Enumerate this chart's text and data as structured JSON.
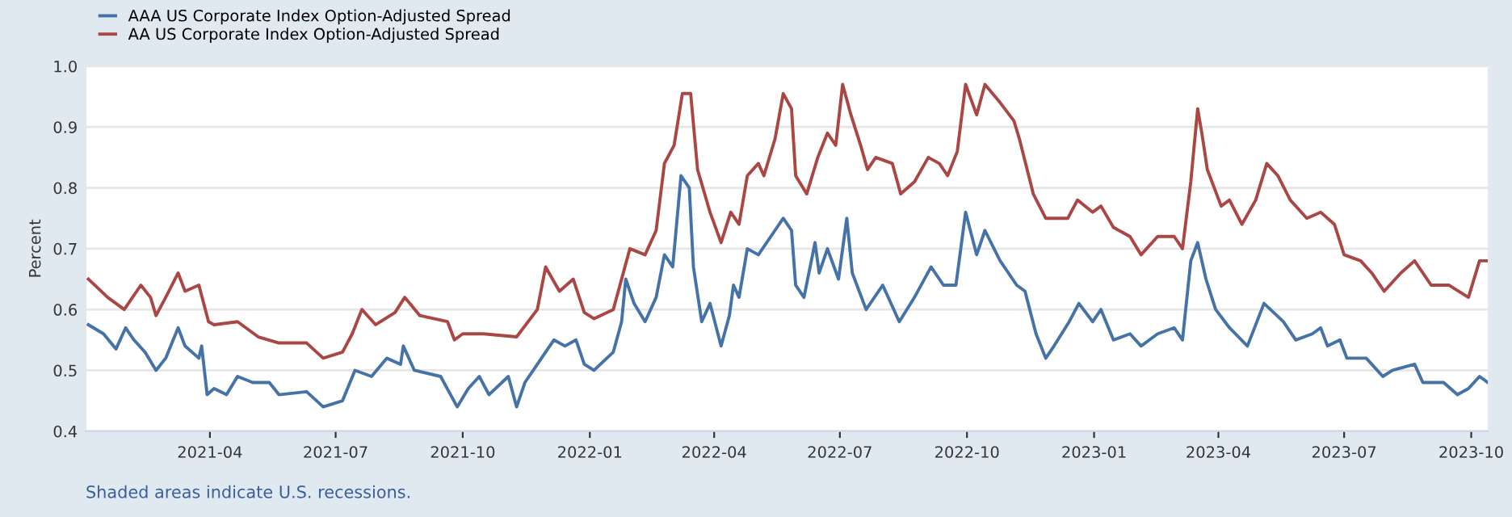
{
  "chart_data": {
    "type": "line",
    "ylabel": "Percent",
    "ylim": [
      0.4,
      1.0
    ],
    "yticks": [
      0.4,
      0.5,
      0.6,
      0.7,
      0.8,
      0.9,
      {
        "value": 1,
        "label": "1.0"
      }
    ],
    "xlim": [
      "2021-01-01",
      "2023-10-13"
    ],
    "xticks": [
      "2021-04",
      "2021-07",
      "2021-10",
      "2022-01",
      "2022-04",
      "2022-07",
      "2022-10",
      "2023-01",
      "2023-04",
      "2023-07",
      "2023-10"
    ],
    "grid": "y",
    "legend": "top left",
    "line_style": "solid",
    "marker": "none",
    "annotations": [
      "Shaded areas indicate U.S. recessions."
    ],
    "series": [
      {
        "name": "AAA US Corporate Index Option-Adjusted Spread",
        "color": "#4572a7",
        "x": [
          "2021-01-03",
          "2021-01-14",
          "2021-01-23",
          "2021-01-30",
          "2021-02-05",
          "2021-02-13",
          "2021-02-21",
          "2021-02-28",
          "2021-03-09",
          "2021-03-14",
          "2021-03-24",
          "2021-03-26",
          "2021-03-30",
          "2021-04-04",
          "2021-04-13",
          "2021-04-21",
          "2021-05-02",
          "2021-05-14",
          "2021-05-21",
          "2021-06-10",
          "2021-06-22",
          "2021-07-06",
          "2021-07-15",
          "2021-07-27",
          "2021-08-07",
          "2021-08-17",
          "2021-08-19",
          "2021-08-27",
          "2021-09-15",
          "2021-09-27",
          "2021-10-05",
          "2021-10-13",
          "2021-10-20",
          "2021-11-03",
          "2021-11-09",
          "2021-11-15",
          "2021-11-30",
          "2021-12-06",
          "2021-12-14",
          "2021-12-22",
          "2021-12-28",
          "2022-01-04",
          "2022-01-18",
          "2022-01-24",
          "2022-01-27",
          "2022-02-02",
          "2022-02-10",
          "2022-02-18",
          "2022-02-24",
          "2022-03-02",
          "2022-03-08",
          "2022-03-14",
          "2022-03-17",
          "2022-03-23",
          "2022-03-29",
          "2022-04-06",
          "2022-04-12",
          "2022-04-15",
          "2022-04-19",
          "2022-04-25",
          "2022-05-03",
          "2022-05-15",
          "2022-05-21",
          "2022-05-27",
          "2022-05-30",
          "2022-06-05",
          "2022-06-13",
          "2022-06-16",
          "2022-06-22",
          "2022-06-30",
          "2022-07-06",
          "2022-07-10",
          "2022-07-20",
          "2022-08-01",
          "2022-08-13",
          "2022-08-24",
          "2022-09-05",
          "2022-09-14",
          "2022-09-23",
          "2022-09-30",
          "2022-10-08",
          "2022-10-14",
          "2022-10-25",
          "2022-11-06",
          "2022-11-12",
          "2022-11-20",
          "2022-11-27",
          "2022-12-03",
          "2022-12-14",
          "2022-12-21",
          "2022-12-31",
          "2023-01-06",
          "2023-01-15",
          "2023-01-27",
          "2023-02-04",
          "2023-02-16",
          "2023-02-28",
          "2023-03-06",
          "2023-03-12",
          "2023-03-17",
          "2023-03-23",
          "2023-03-30",
          "2023-04-09",
          "2023-04-22",
          "2023-05-04",
          "2023-05-18",
          "2023-05-27",
          "2023-06-08",
          "2023-06-14",
          "2023-06-19",
          "2023-06-28",
          "2023-07-03",
          "2023-07-17",
          "2023-07-29",
          "2023-08-05",
          "2023-08-21",
          "2023-08-27",
          "2023-09-11",
          "2023-09-21",
          "2023-09-29",
          "2023-10-07",
          "2023-10-13"
        ],
        "values": [
          0.575,
          0.56,
          0.535,
          0.57,
          0.55,
          0.53,
          0.5,
          0.52,
          0.57,
          0.54,
          0.52,
          0.54,
          0.46,
          0.47,
          0.46,
          0.49,
          0.48,
          0.48,
          0.46,
          0.465,
          0.44,
          0.45,
          0.5,
          0.49,
          0.52,
          0.51,
          0.54,
          0.5,
          0.49,
          0.44,
          0.47,
          0.49,
          0.46,
          0.49,
          0.44,
          0.48,
          0.53,
          0.55,
          0.54,
          0.55,
          0.51,
          0.5,
          0.53,
          0.58,
          0.65,
          0.61,
          0.58,
          0.62,
          0.69,
          0.67,
          0.82,
          0.8,
          0.67,
          0.58,
          0.61,
          0.54,
          0.59,
          0.64,
          0.62,
          0.7,
          0.69,
          0.73,
          0.75,
          0.73,
          0.64,
          0.62,
          0.71,
          0.66,
          0.7,
          0.65,
          0.75,
          0.66,
          0.6,
          0.64,
          0.58,
          0.62,
          0.67,
          0.64,
          0.64,
          0.76,
          0.69,
          0.73,
          0.68,
          0.64,
          0.63,
          0.56,
          0.52,
          0.54,
          0.58,
          0.61,
          0.58,
          0.6,
          0.55,
          0.56,
          0.54,
          0.56,
          0.57,
          0.55,
          0.68,
          0.71,
          0.65,
          0.6,
          0.57,
          0.54,
          0.61,
          0.58,
          0.55,
          0.56,
          0.57,
          0.54,
          0.55,
          0.52,
          0.52,
          0.49,
          0.5,
          0.51,
          0.48,
          0.48,
          0.46,
          0.47,
          0.49,
          0.48
        ]
      },
      {
        "name": "AA US Corporate Index Option-Adjusted Spread",
        "color": "#aa4643",
        "x": [
          "2021-01-03",
          "2021-01-17",
          "2021-01-29",
          "2021-02-10",
          "2021-02-17",
          "2021-02-21",
          "2021-02-28",
          "2021-03-09",
          "2021-03-14",
          "2021-03-24",
          "2021-03-31",
          "2021-04-04",
          "2021-04-21",
          "2021-05-06",
          "2021-05-21",
          "2021-06-10",
          "2021-06-22",
          "2021-07-06",
          "2021-07-13",
          "2021-07-20",
          "2021-07-30",
          "2021-08-13",
          "2021-08-20",
          "2021-08-31",
          "2021-09-20",
          "2021-09-25",
          "2021-10-01",
          "2021-10-16",
          "2021-11-09",
          "2021-11-24",
          "2021-11-30",
          "2021-12-10",
          "2021-12-20",
          "2021-12-28",
          "2022-01-04",
          "2022-01-18",
          "2022-01-24",
          "2022-01-30",
          "2022-02-10",
          "2022-02-18",
          "2022-02-24",
          "2022-03-03",
          "2022-03-09",
          "2022-03-15",
          "2022-03-20",
          "2022-03-29",
          "2022-04-06",
          "2022-04-13",
          "2022-04-19",
          "2022-04-25",
          "2022-05-03",
          "2022-05-07",
          "2022-05-15",
          "2022-05-21",
          "2022-05-27",
          "2022-05-30",
          "2022-06-07",
          "2022-06-15",
          "2022-06-22",
          "2022-06-28",
          "2022-07-03",
          "2022-07-09",
          "2022-07-16",
          "2022-07-21",
          "2022-07-27",
          "2022-08-08",
          "2022-08-14",
          "2022-08-24",
          "2022-09-03",
          "2022-09-11",
          "2022-09-17",
          "2022-09-24",
          "2022-09-30",
          "2022-10-08",
          "2022-10-14",
          "2022-10-25",
          "2022-11-04",
          "2022-11-08",
          "2022-11-18",
          "2022-11-27",
          "2022-12-13",
          "2022-12-20",
          "2022-12-31",
          "2023-01-06",
          "2023-01-15",
          "2023-01-27",
          "2023-02-04",
          "2023-02-16",
          "2023-02-28",
          "2023-03-06",
          "2023-03-12",
          "2023-03-17",
          "2023-03-20",
          "2023-03-24",
          "2023-04-03",
          "2023-04-09",
          "2023-04-18",
          "2023-04-28",
          "2023-05-06",
          "2023-05-14",
          "2023-05-23",
          "2023-06-04",
          "2023-06-14",
          "2023-06-24",
          "2023-07-01",
          "2023-07-13",
          "2023-07-21",
          "2023-07-30",
          "2023-08-11",
          "2023-08-21",
          "2023-09-02",
          "2023-09-15",
          "2023-09-29",
          "2023-10-07",
          "2023-10-13"
        ],
        "values": [
          0.65,
          0.62,
          0.6,
          0.64,
          0.62,
          0.59,
          0.62,
          0.66,
          0.63,
          0.64,
          0.58,
          0.575,
          0.58,
          0.555,
          0.545,
          0.545,
          0.52,
          0.53,
          0.56,
          0.6,
          0.575,
          0.595,
          0.62,
          0.59,
          0.58,
          0.55,
          0.56,
          0.56,
          0.555,
          0.6,
          0.67,
          0.63,
          0.65,
          0.595,
          0.585,
          0.6,
          0.65,
          0.7,
          0.69,
          0.73,
          0.84,
          0.87,
          0.955,
          0.955,
          0.83,
          0.76,
          0.71,
          0.76,
          0.74,
          0.82,
          0.84,
          0.82,
          0.88,
          0.955,
          0.93,
          0.82,
          0.79,
          0.85,
          0.89,
          0.87,
          0.97,
          0.92,
          0.87,
          0.83,
          0.85,
          0.84,
          0.79,
          0.81,
          0.85,
          0.84,
          0.82,
          0.86,
          0.97,
          0.92,
          0.97,
          0.94,
          0.91,
          0.88,
          0.79,
          0.75,
          0.75,
          0.78,
          0.76,
          0.77,
          0.735,
          0.72,
          0.69,
          0.72,
          0.72,
          0.7,
          0.81,
          0.93,
          0.89,
          0.83,
          0.77,
          0.78,
          0.74,
          0.78,
          0.84,
          0.82,
          0.78,
          0.75,
          0.76,
          0.74,
          0.69,
          0.68,
          0.66,
          0.63,
          0.66,
          0.68,
          0.64,
          0.64,
          0.62,
          0.68,
          0.68
        ]
      }
    ]
  }
}
